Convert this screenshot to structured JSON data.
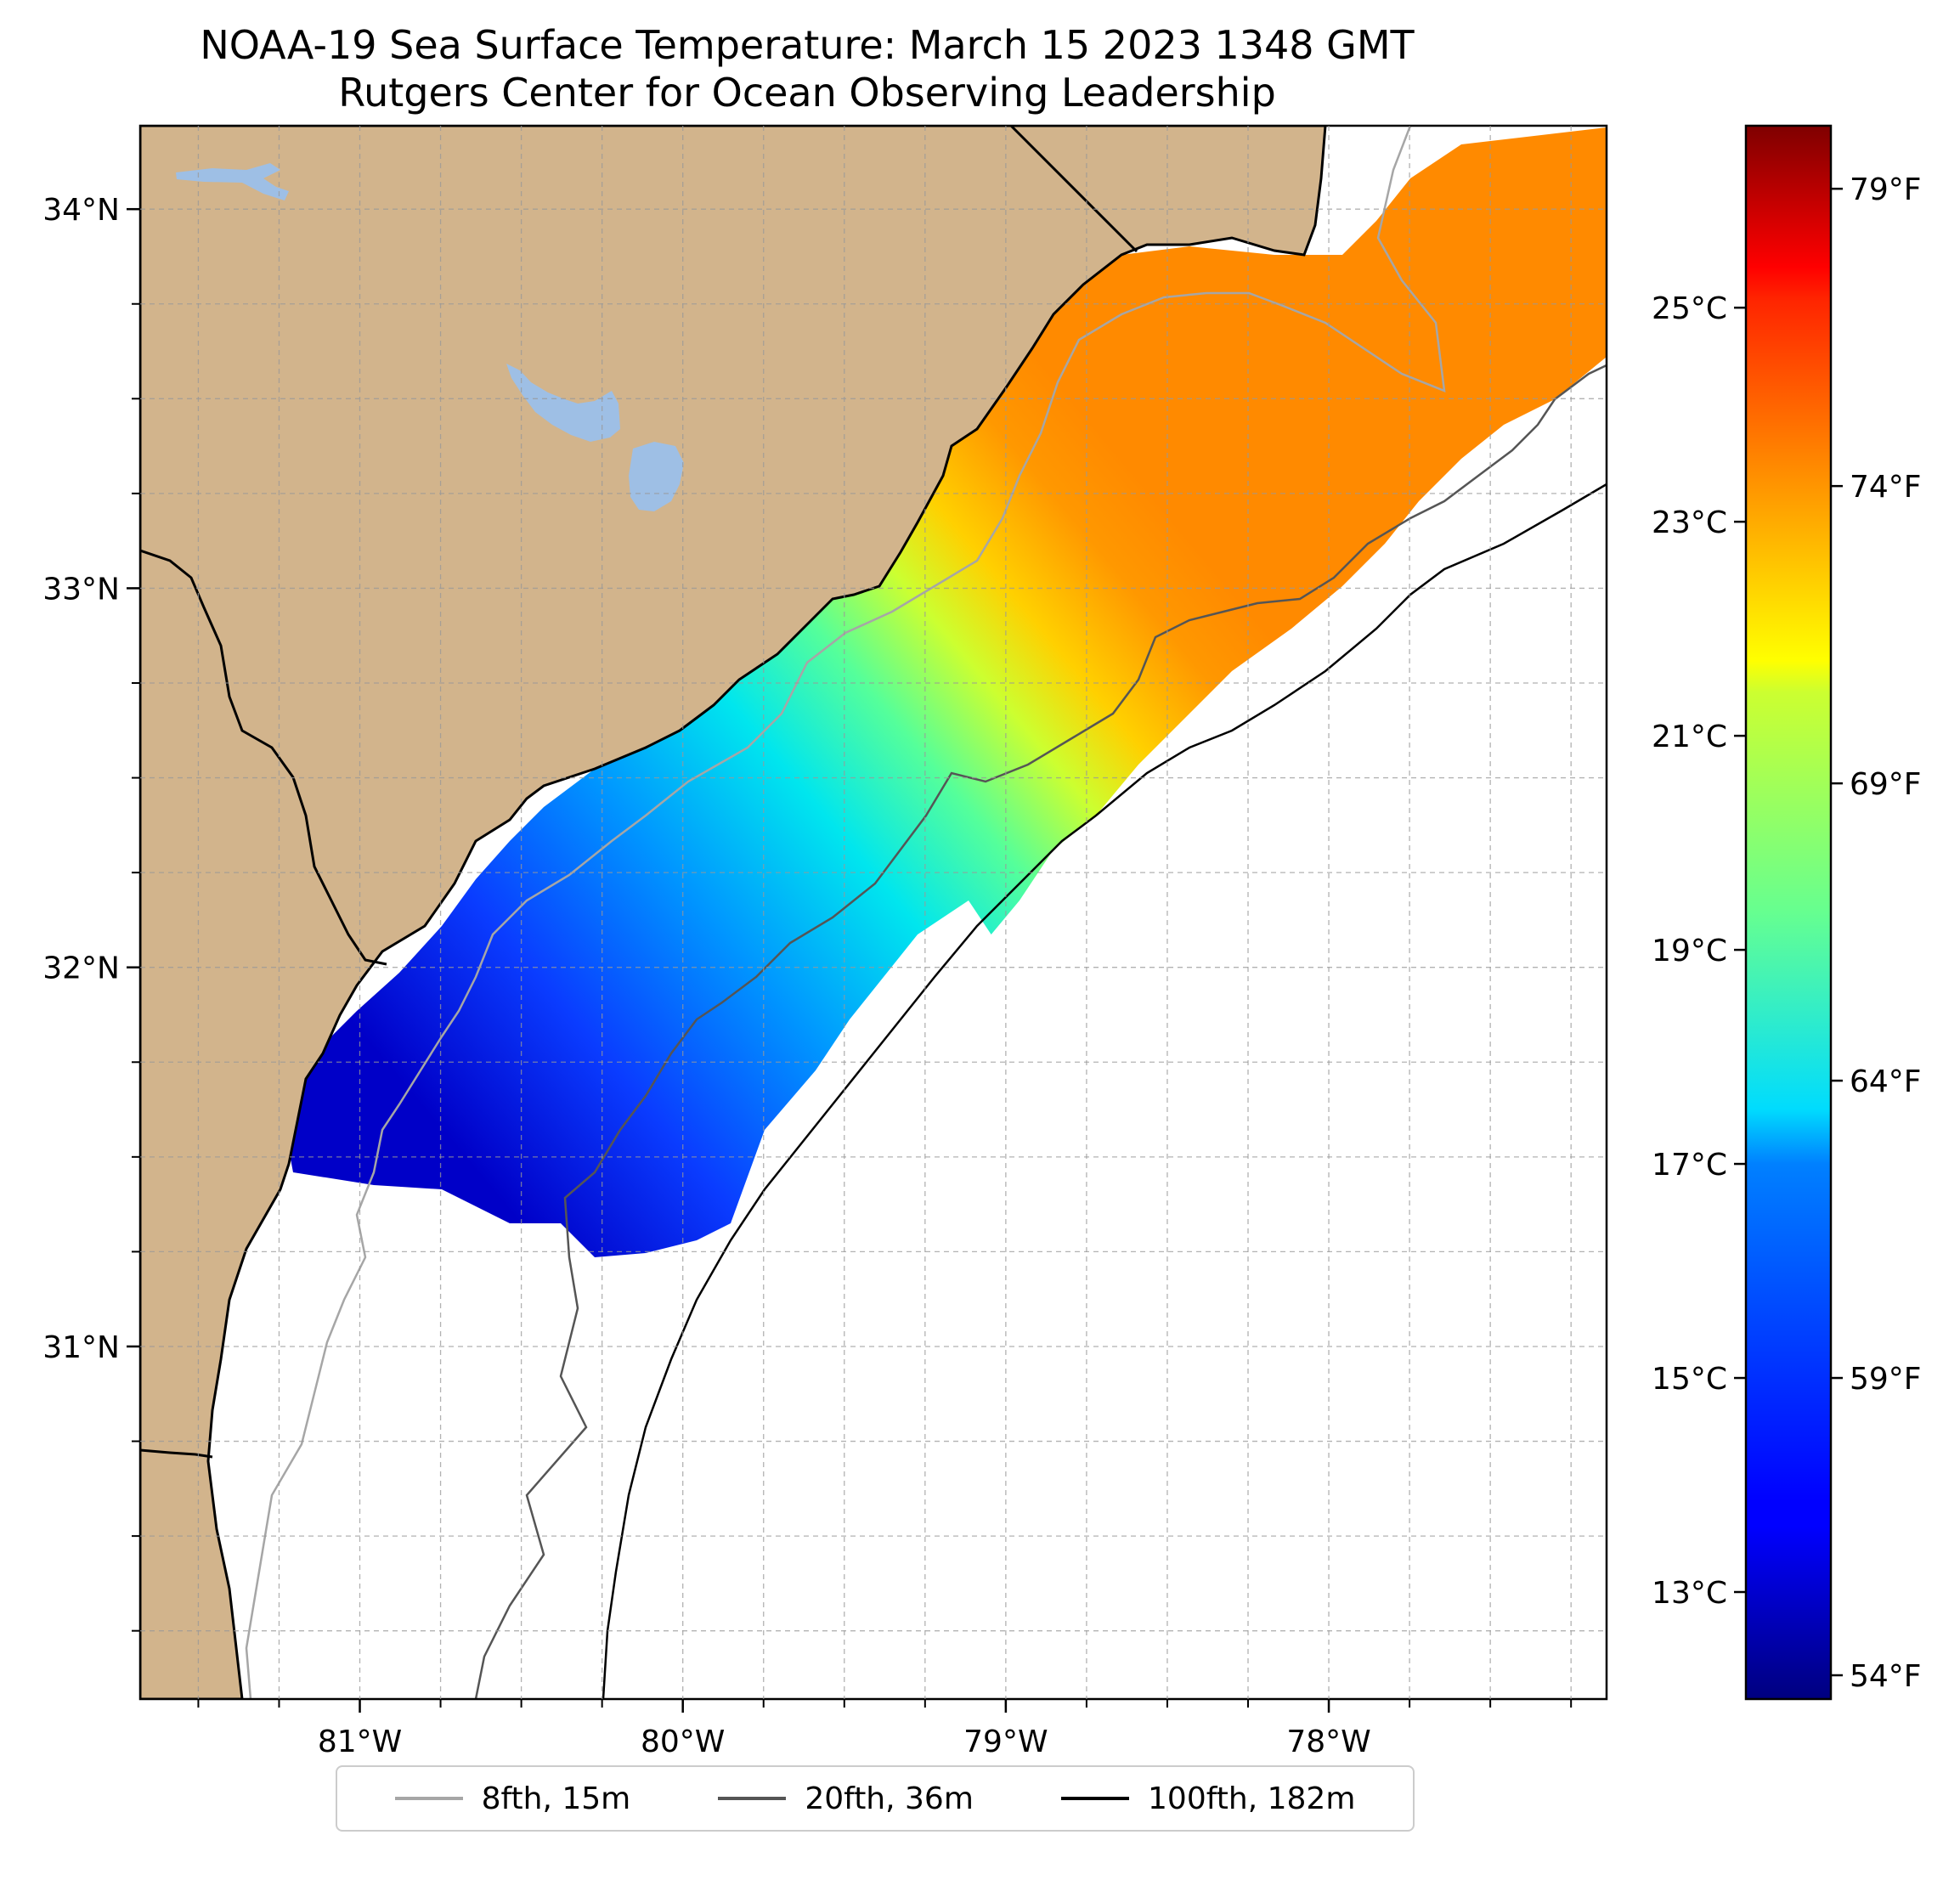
{
  "title": {
    "line1": "NOAA-19 Sea Surface Temperature: March 15 2023 1348 GMT",
    "line2": "Rutgers Center for Ocean Observing Leadership"
  },
  "map": {
    "lon_range": [
      -81.68,
      -77.14
    ],
    "lat_range": [
      30.07,
      34.22
    ],
    "lon_ticks": [
      {
        "value": -81,
        "label": "81°W"
      },
      {
        "value": -80,
        "label": "80°W"
      },
      {
        "value": -79,
        "label": "79°W"
      },
      {
        "value": -78,
        "label": "78°W"
      }
    ],
    "lat_ticks": [
      {
        "value": 34,
        "label": "34°N"
      },
      {
        "value": 33,
        "label": "33°N"
      },
      {
        "value": 32,
        "label": "32°N"
      },
      {
        "value": 31,
        "label": "31°N"
      }
    ],
    "grid": true,
    "colors": {
      "land": "#d2b48c",
      "lakes": "#9ebfe5",
      "coast": "#000000",
      "ocean_no_data": "#ffffff"
    }
  },
  "colorbar": {
    "cmap": "jet",
    "range_c": [
      12.0,
      26.7
    ],
    "celsius_ticks": [
      {
        "value": 13,
        "label": "13°C"
      },
      {
        "value": 15,
        "label": "15°C"
      },
      {
        "value": 17,
        "label": "17°C"
      },
      {
        "value": 19,
        "label": "19°C"
      },
      {
        "value": 21,
        "label": "21°C"
      },
      {
        "value": 23,
        "label": "23°C"
      },
      {
        "value": 25,
        "label": "25°C"
      }
    ],
    "fahrenheit_ticks": [
      {
        "value": 54,
        "label": "54°F"
      },
      {
        "value": 59,
        "label": "59°F"
      },
      {
        "value": 64,
        "label": "64°F"
      },
      {
        "value": 69,
        "label": "69°F"
      },
      {
        "value": 74,
        "label": "74°F"
      },
      {
        "value": 79,
        "label": "79°F"
      }
    ]
  },
  "legend": {
    "placement": "bottom-center",
    "items": [
      {
        "label": "8fth, 15m",
        "color": "#a6a6a6"
      },
      {
        "label": "20fth, 36m",
        "color": "#555555"
      },
      {
        "label": "100fth, 182m",
        "color": "#000000"
      }
    ]
  }
}
